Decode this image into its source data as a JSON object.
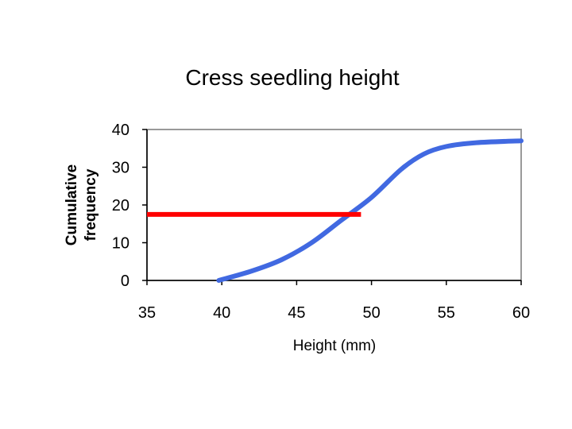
{
  "chart_data": {
    "type": "line",
    "title": "Cress seedling height",
    "xlabel": "Height (mm)",
    "ylabel_lines": [
      "Cumulative",
      "frequency"
    ],
    "xlim": [
      35,
      60
    ],
    "ylim": [
      0,
      40
    ],
    "x_ticks": [
      "35",
      "40",
      "45",
      "50",
      "55",
      "60"
    ],
    "y_ticks": [
      "0",
      "10",
      "20",
      "30",
      "40"
    ],
    "grid": false,
    "series": [
      {
        "color": "#4169e1",
        "x": [
          39.8,
          42,
          44,
          46,
          48,
          50,
          52,
          53.5,
          55,
          57,
          60
        ],
        "y": [
          0,
          2.5,
          5.5,
          10,
          16,
          22,
          29.5,
          33.5,
          35.5,
          36.5,
          37
        ]
      }
    ],
    "annotations": [
      {
        "type": "horizontal-line",
        "color": "#ff0000",
        "y": 17.5,
        "x_start": 35,
        "x_end": 49.3
      }
    ],
    "colors": {
      "frame": "#999999",
      "axis": "#000000"
    }
  }
}
